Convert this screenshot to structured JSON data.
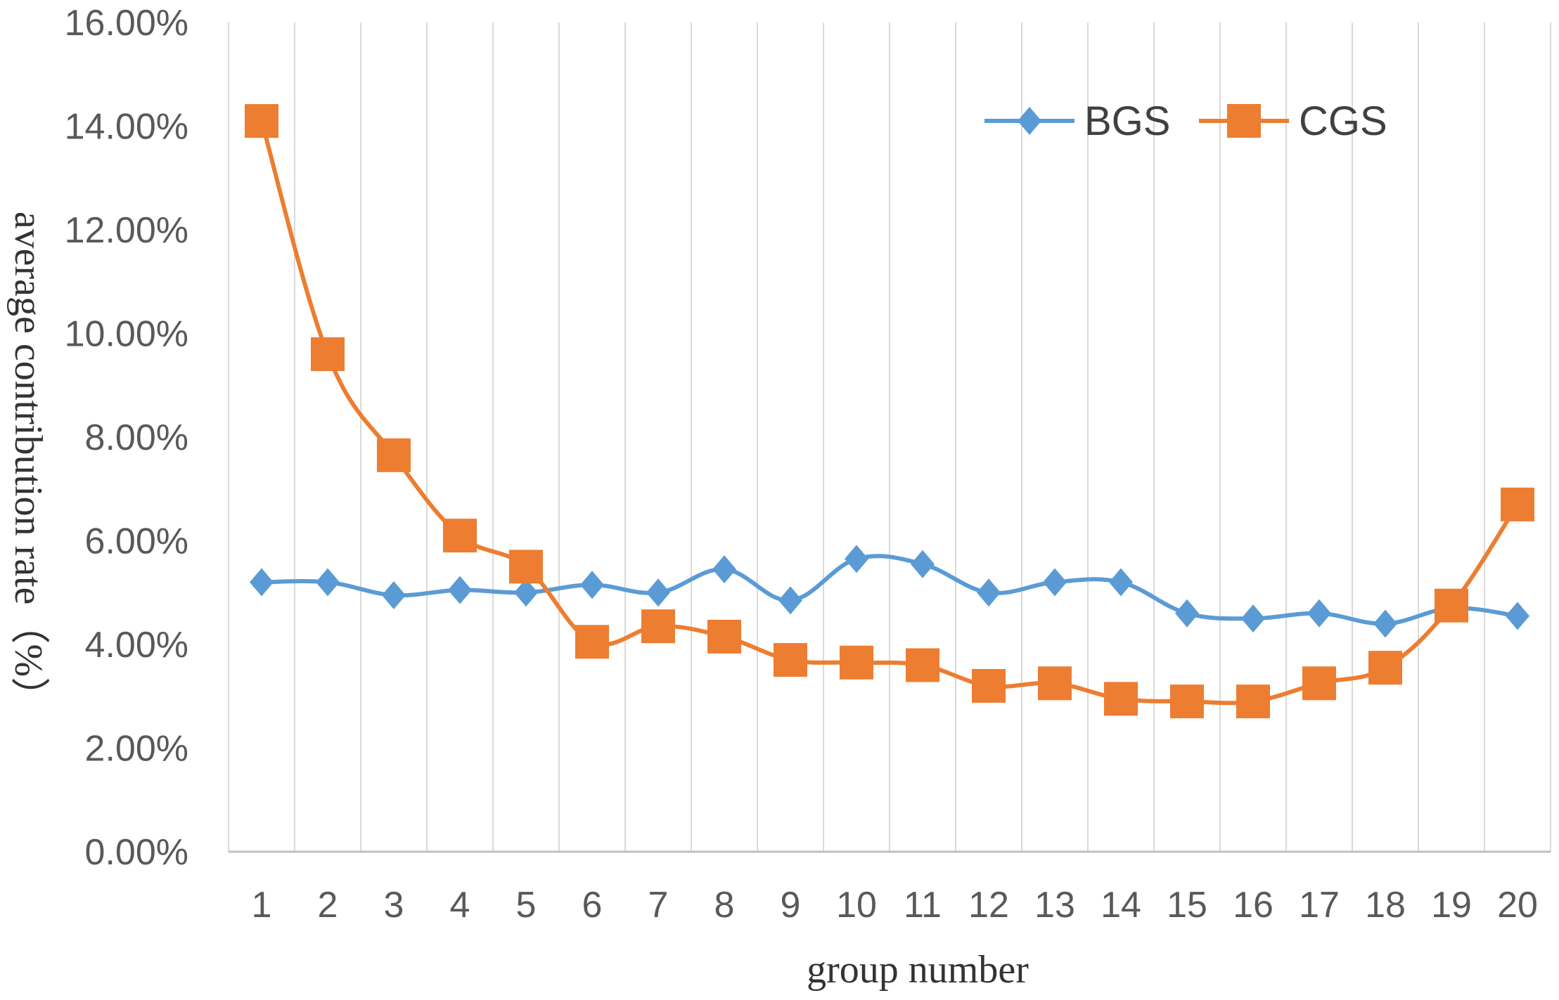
{
  "chart_data": {
    "type": "line",
    "x": [
      1,
      2,
      3,
      4,
      5,
      6,
      7,
      8,
      9,
      10,
      11,
      12,
      13,
      14,
      15,
      16,
      17,
      18,
      19,
      20
    ],
    "x_tick_labels": [
      "1",
      "2",
      "3",
      "4",
      "5",
      "6",
      "7",
      "8",
      "9",
      "10",
      "11",
      "12",
      "13",
      "14",
      "15",
      "16",
      "17",
      "18",
      "19",
      "20"
    ],
    "series": [
      {
        "name": "BGS",
        "color": "#5b9bd5",
        "marker": "diamond",
        "values": [
          5.2,
          5.2,
          4.95,
          5.05,
          5.0,
          5.15,
          5.0,
          5.45,
          4.85,
          5.65,
          5.55,
          5.0,
          5.2,
          5.2,
          4.6,
          4.5,
          4.6,
          4.4,
          4.7,
          4.55
        ]
      },
      {
        "name": "CGS",
        "color": "#ed7d31",
        "marker": "square",
        "values": [
          14.1,
          9.6,
          7.65,
          6.1,
          5.5,
          4.05,
          4.35,
          4.15,
          3.7,
          3.65,
          3.6,
          3.2,
          3.25,
          2.95,
          2.9,
          2.9,
          3.25,
          3.55,
          4.75,
          6.7
        ]
      }
    ],
    "y_tick_labels": [
      "0.00%",
      "2.00%",
      "4.00%",
      "6.00%",
      "8.00%",
      "10.00%",
      "12.00%",
      "14.00%",
      "16.00%"
    ],
    "ylim": [
      0,
      16
    ],
    "xlabel": "group number",
    "ylabel": "average contribution rate（%）",
    "grid": "vertical",
    "legend_position": "top-right"
  }
}
